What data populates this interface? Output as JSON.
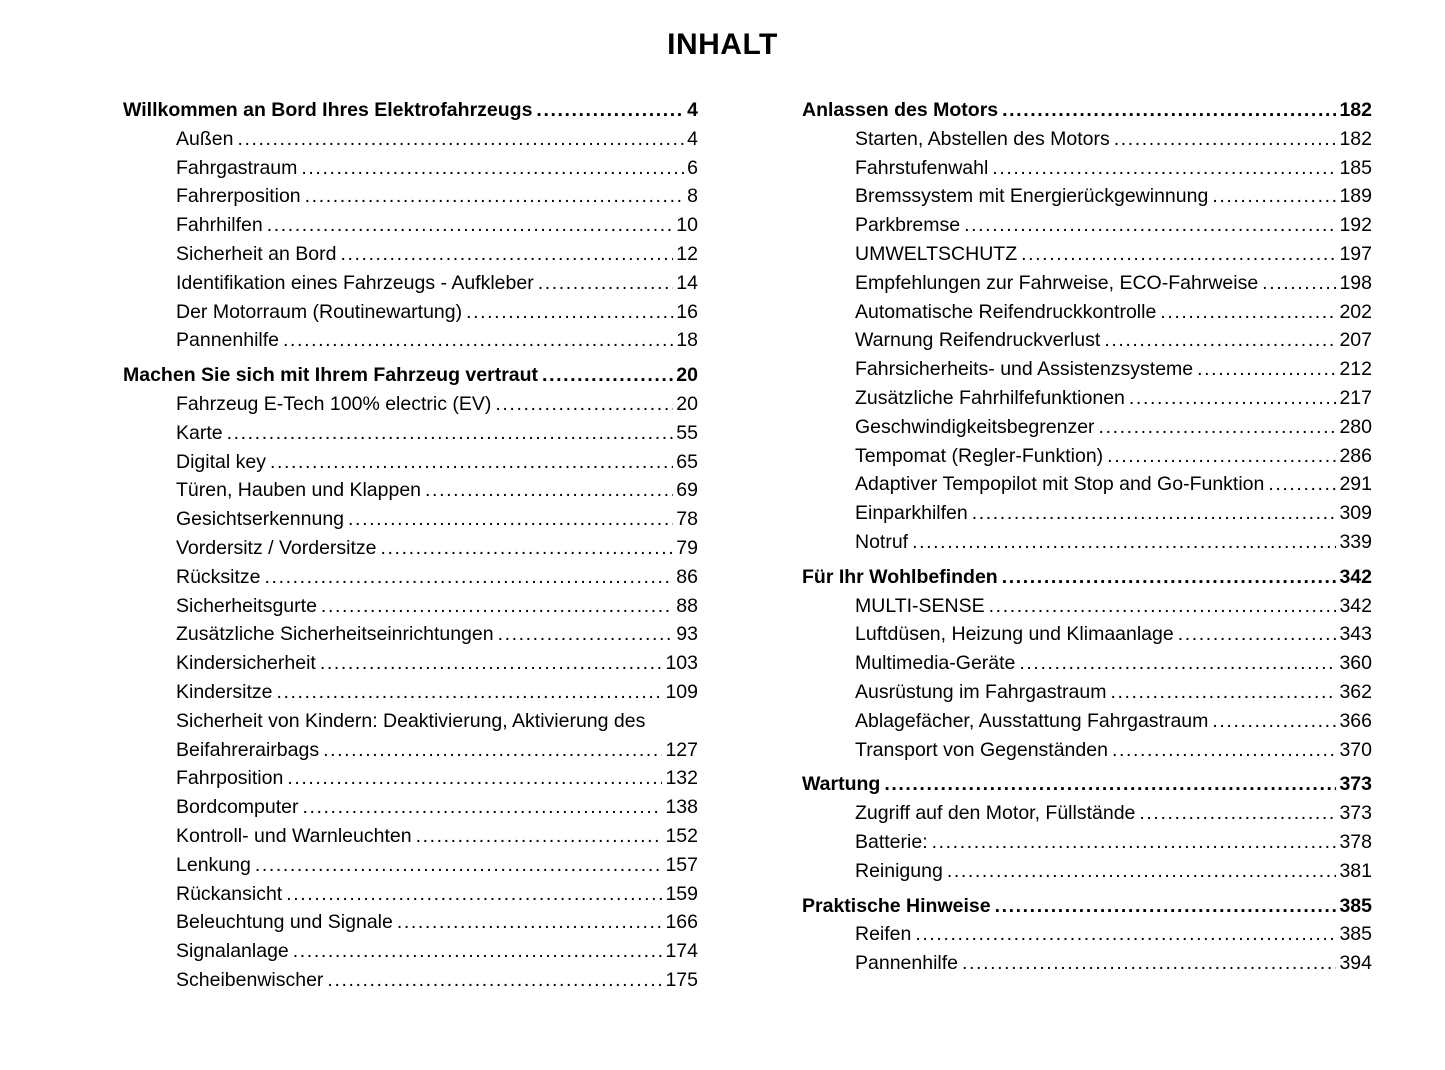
{
  "page_title": "INHALT",
  "colors": {
    "text": "#000000",
    "background": "#ffffff"
  },
  "columns": [
    {
      "sections": [
        {
          "title": "Willkommen an Bord Ihres Elektrofahrzeugs",
          "page": "4",
          "items": [
            {
              "label": "Außen",
              "page": "4"
            },
            {
              "label": "Fahrgastraum",
              "page": "6"
            },
            {
              "label": "Fahrerposition",
              "page": "8"
            },
            {
              "label": "Fahrhilfen",
              "page": "10"
            },
            {
              "label": "Sicherheit an Bord",
              "page": "12"
            },
            {
              "label": "Identifikation eines Fahrzeugs - Aufkleber",
              "page": "14"
            },
            {
              "label": "Der Motorraum (Routinewartung)",
              "page": "16"
            },
            {
              "label": "Pannenhilfe",
              "page": "18"
            }
          ]
        },
        {
          "title": "Machen Sie sich mit Ihrem Fahrzeug vertraut",
          "page": "20",
          "items": [
            {
              "label": "Fahrzeug E-Tech 100% electric (EV)",
              "page": "20"
            },
            {
              "label": "Karte",
              "page": "55"
            },
            {
              "label": "Digital key",
              "page": "65"
            },
            {
              "label": "Türen, Hauben und Klappen",
              "page": "69"
            },
            {
              "label": "Gesichtserkennung",
              "page": "78"
            },
            {
              "label": "Vordersitz / Vordersitze",
              "page": "79"
            },
            {
              "label": "Rücksitze",
              "page": "86"
            },
            {
              "label": "Sicherheitsgurte",
              "page": "88"
            },
            {
              "label": "Zusätzliche Sicherheitseinrichtungen",
              "page": "93"
            },
            {
              "label": "Kindersicherheit",
              "page": "103"
            },
            {
              "label": "Kindersitze",
              "page": "109"
            },
            {
              "label": "Sicherheit von Kindern: Deaktivierung, Aktivierung des",
              "label_cont": "Beifahrerairbags",
              "page": "127"
            },
            {
              "label": "Fahrposition",
              "page": "132"
            },
            {
              "label": "Bordcomputer",
              "page": "138"
            },
            {
              "label": "Kontroll- und Warnleuchten",
              "page": "152"
            },
            {
              "label": "Lenkung",
              "page": "157"
            },
            {
              "label": "Rückansicht",
              "page": "159"
            },
            {
              "label": "Beleuchtung und Signale",
              "page": "166"
            },
            {
              "label": "Signalanlage",
              "page": "174"
            },
            {
              "label": "Scheibenwischer",
              "page": "175"
            }
          ]
        }
      ]
    },
    {
      "sections": [
        {
          "title": "Anlassen des Motors",
          "page": "182",
          "items": [
            {
              "label": "Starten, Abstellen des Motors",
              "page": "182"
            },
            {
              "label": "Fahrstufenwahl",
              "page": "185"
            },
            {
              "label": "Bremssystem mit Energierückgewinnung",
              "page": "189"
            },
            {
              "label": "Parkbremse",
              "page": "192"
            },
            {
              "label": "UMWELTSCHUTZ",
              "page": "197"
            },
            {
              "label": "Empfehlungen zur Fahrweise, ECO-Fahrweise",
              "page": "198"
            },
            {
              "label": "Automatische Reifendruckkontrolle",
              "page": "202"
            },
            {
              "label": "Warnung Reifendruckverlust",
              "page": "207"
            },
            {
              "label": "Fahrsicherheits- und Assistenzsysteme",
              "page": "212"
            },
            {
              "label": "Zusätzliche Fahrhilfefunktionen",
              "page": "217"
            },
            {
              "label": "Geschwindigkeitsbegrenzer",
              "page": "280"
            },
            {
              "label": "Tempomat (Regler-Funktion)",
              "page": "286"
            },
            {
              "label": "Adaptiver Tempopilot mit Stop and Go-Funktion",
              "page": "291"
            },
            {
              "label": "Einparkhilfen",
              "page": "309"
            },
            {
              "label": "Notruf",
              "page": "339"
            }
          ]
        },
        {
          "title": "Für Ihr Wohlbefinden",
          "page": "342",
          "items": [
            {
              "label": "MULTI-SENSE",
              "page": "342"
            },
            {
              "label": "Luftdüsen, Heizung und Klimaanlage",
              "page": "343"
            },
            {
              "label": "Multimedia-Geräte",
              "page": "360"
            },
            {
              "label": "Ausrüstung im Fahrgastraum",
              "page": "362"
            },
            {
              "label": "Ablagefächer, Ausstattung Fahrgastraum",
              "page": "366"
            },
            {
              "label": "Transport von Gegenständen",
              "page": "370"
            }
          ]
        },
        {
          "title": "Wartung",
          "page": "373",
          "items": [
            {
              "label": "Zugriff auf den Motor, Füllstände",
              "page": "373"
            },
            {
              "label": "Batterie:",
              "page": "378"
            },
            {
              "label": "Reinigung",
              "page": "381"
            }
          ]
        },
        {
          "title": "Praktische Hinweise",
          "page": "385",
          "items": [
            {
              "label": "Reifen",
              "page": "385"
            },
            {
              "label": "Pannenhilfe",
              "page": "394"
            }
          ]
        }
      ]
    }
  ]
}
